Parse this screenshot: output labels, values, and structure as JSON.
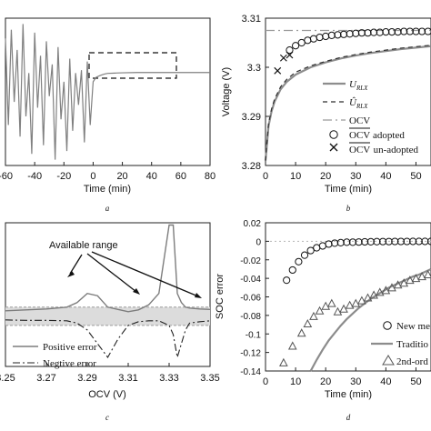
{
  "chart_data": [
    {
      "panel": "a",
      "type": "line",
      "xlabel": "Time (min)",
      "xlim": [
        -60,
        80
      ],
      "x_ticks": [
        "-60",
        "-40",
        "-20",
        "0",
        "20",
        "40",
        "60",
        "80"
      ],
      "caption": "a",
      "series": [
        {
          "style": "solid-gray",
          "x": [
            -60,
            -58,
            -56,
            -54,
            -52,
            -50,
            -48,
            -46,
            -44,
            -42,
            -40,
            -38,
            -36,
            -34,
            -32,
            -30,
            -28,
            -26,
            -24,
            -22,
            -20,
            -18,
            -16,
            -14,
            -12,
            -10,
            -8,
            -6,
            -4,
            -2,
            0,
            2,
            4,
            6,
            8,
            10,
            15,
            20,
            30,
            40,
            50,
            60,
            70,
            80
          ],
          "y": [
            3.42,
            3.12,
            3.45,
            3.2,
            3.38,
            3.08,
            3.47,
            3.15,
            3.3,
            3.02,
            3.44,
            3.18,
            3.36,
            3.05,
            3.41,
            3.22,
            3.33,
            3.0,
            3.39,
            3.14,
            3.27,
            3.03,
            3.35,
            3.1,
            3.3,
            3.19,
            3.31,
            3.06,
            3.34,
            3.12,
            3.27,
            3.285,
            3.29,
            3.294,
            3.297,
            3.299,
            3.3,
            3.301,
            3.302,
            3.302,
            3.302,
            3.302,
            3.302,
            3.302
          ]
        }
      ],
      "annotation": "dashed zoom box around relaxation period"
    },
    {
      "panel": "b",
      "type": "line",
      "xlabel": "Time (min)",
      "ylabel": "Voltage (V)",
      "xlim": [
        0,
        55
      ],
      "ylim": [
        3.28,
        3.31
      ],
      "x_ticks": [
        "0",
        "10",
        "20",
        "30",
        "40",
        "50"
      ],
      "y_ticks": [
        "3.28",
        "3.29",
        "3.3",
        "3.31"
      ],
      "caption": "b",
      "legend": [
        "U_RLX",
        "Û_RLX",
        "OCV",
        "OCV adopted",
        "OCV un-adopted"
      ],
      "legend_display": {
        "u_main": "U",
        "u_sub": "RLX",
        "uhat_main": "Û",
        "uhat_sub": "RLX",
        "ocv": "OCV",
        "ocv_adopted_main": "OCV",
        "ocv_adopted_tail": "adopted",
        "ocv_unadopted_main": "OCV",
        "ocv_unadopted_tail": "un-adopted"
      },
      "series": [
        {
          "name": "U_RLX",
          "x": [
            0,
            1,
            2,
            3,
            5,
            7,
            10,
            15,
            20,
            25,
            30,
            35,
            40,
            45,
            50,
            55
          ],
          "y": [
            3.281,
            3.288,
            3.291,
            3.293,
            3.2955,
            3.297,
            3.2985,
            3.3,
            3.301,
            3.3018,
            3.3024,
            3.3029,
            3.3033,
            3.3037,
            3.304,
            3.3043
          ]
        },
        {
          "name": "Û_RLX",
          "x": [
            0,
            1,
            2,
            3,
            5,
            7,
            10,
            15,
            20,
            25,
            30,
            35,
            40,
            45,
            50,
            55
          ],
          "y": [
            3.281,
            3.2885,
            3.2915,
            3.2935,
            3.296,
            3.2975,
            3.299,
            3.3003,
            3.3012,
            3.302,
            3.3026,
            3.3031,
            3.3035,
            3.3039,
            3.3042,
            3.3045
          ]
        },
        {
          "name": "OCV",
          "x": [
            0,
            55
          ],
          "y": [
            3.3075,
            3.3075
          ]
        },
        {
          "name": "OCV adopted",
          "x": [
            8,
            10,
            12,
            14,
            16,
            18,
            20,
            22,
            24,
            26,
            28,
            30,
            32,
            34,
            36,
            38,
            40,
            42,
            44,
            46,
            48,
            50,
            52,
            54
          ],
          "y": [
            3.3035,
            3.3044,
            3.305,
            3.3055,
            3.3058,
            3.3061,
            3.3063,
            3.3065,
            3.3066,
            3.3067,
            3.3068,
            3.3069,
            3.307,
            3.307,
            3.3071,
            3.3071,
            3.3072,
            3.3072,
            3.3072,
            3.3073,
            3.3073,
            3.3073,
            3.3073,
            3.3073
          ]
        },
        {
          "name": "OCV un-adopted",
          "x": [
            4,
            6,
            8
          ],
          "y": [
            3.2993,
            3.3019,
            3.3025
          ]
        }
      ]
    },
    {
      "panel": "c",
      "type": "line",
      "xlabel": "OCV (V)",
      "xlim": [
        3.25,
        3.35
      ],
      "x_ticks": [
        "3.25",
        "3.27",
        "3.29",
        "3.31",
        "3.33",
        "3.35"
      ],
      "caption": "c",
      "annotation": "Available range",
      "legend": [
        "Positive error",
        "Negtive error"
      ],
      "series": [
        {
          "name": "Positive error",
          "x": [
            3.25,
            3.26,
            3.27,
            3.28,
            3.285,
            3.29,
            3.295,
            3.3,
            3.305,
            3.31,
            3.315,
            3.32,
            3.325,
            3.33,
            3.332,
            3.334,
            3.336,
            3.338,
            3.34,
            3.345,
            3.35
          ],
          "y": [
            0.012,
            0.014,
            0.016,
            0.02,
            0.03,
            0.05,
            0.045,
            0.02,
            0.015,
            0.01,
            0.014,
            0.025,
            0.05,
            0.2,
            0.2,
            0.05,
            0.03,
            0.02,
            0.018,
            0.016,
            0.015
          ]
        },
        {
          "name": "Negtive error",
          "x": [
            3.25,
            3.26,
            3.27,
            3.28,
            3.285,
            3.29,
            3.295,
            3.3,
            3.305,
            3.31,
            3.315,
            3.32,
            3.325,
            3.33,
            3.332,
            3.334,
            3.336,
            3.338,
            3.34,
            3.345,
            3.35
          ],
          "y": [
            -0.008,
            -0.009,
            -0.009,
            -0.01,
            -0.015,
            -0.03,
            -0.06,
            -0.09,
            -0.05,
            -0.02,
            -0.012,
            -0.01,
            -0.01,
            -0.02,
            -0.04,
            -0.09,
            -0.06,
            -0.03,
            -0.015,
            -0.012,
            -0.01
          ]
        }
      ],
      "shaded_band": {
        "x": [
          3.25,
          3.35
        ],
        "y": [
          -0.02,
          0.02
        ]
      }
    },
    {
      "panel": "d",
      "type": "line",
      "xlabel": "Time (min)",
      "ylabel": "SOC error",
      "xlim": [
        0,
        55
      ],
      "ylim": [
        -0.14,
        0.02
      ],
      "x_ticks": [
        "0",
        "10",
        "20",
        "30",
        "40",
        "50"
      ],
      "y_ticks": [
        "0.02",
        "0",
        "-0.02",
        "-0.04",
        "-0.06",
        "-0.08",
        "-0.1",
        "-0.12",
        "-0.14"
      ],
      "caption": "d",
      "legend": [
        "New me",
        "Traditio",
        "2nd-ord"
      ],
      "series": [
        {
          "name": "New me",
          "x": [
            7,
            9,
            11,
            13,
            15,
            17,
            19,
            21,
            23,
            25,
            27,
            29,
            31,
            33,
            35,
            37,
            39,
            41,
            43,
            45,
            47,
            49,
            51,
            53,
            55
          ],
          "y": [
            -0.042,
            -0.031,
            -0.022,
            -0.015,
            -0.01,
            -0.007,
            -0.005,
            -0.003,
            -0.002,
            -0.0015,
            -0.001,
            -0.001,
            -0.0008,
            -0.0006,
            -0.0005,
            -0.0004,
            -0.0003,
            -0.0003,
            -0.0002,
            -0.0002,
            -0.0002,
            -0.0001,
            -0.0001,
            -0.0001,
            -0.0001
          ]
        },
        {
          "name": "Traditio",
          "x": [
            15,
            17,
            19,
            21,
            23,
            25,
            27,
            29,
            31,
            33,
            35,
            37,
            39,
            41,
            43,
            45,
            47,
            49,
            51,
            53,
            55
          ],
          "y": [
            -0.14,
            -0.128,
            -0.117,
            -0.107,
            -0.099,
            -0.091,
            -0.084,
            -0.078,
            -0.072,
            -0.067,
            -0.062,
            -0.058,
            -0.054,
            -0.05,
            -0.047,
            -0.044,
            -0.041,
            -0.038,
            -0.036,
            -0.033,
            -0.03
          ]
        },
        {
          "name": "2nd-ord",
          "x": [
            6,
            9,
            12,
            14,
            16,
            18,
            20,
            22,
            24,
            26,
            28,
            30,
            32,
            34,
            36,
            38,
            40,
            42,
            44,
            46,
            48,
            50,
            52,
            54
          ],
          "y": [
            -0.131,
            -0.113,
            -0.099,
            -0.089,
            -0.081,
            -0.075,
            -0.07,
            -0.067,
            -0.076,
            -0.073,
            -0.069,
            -0.067,
            -0.064,
            -0.061,
            -0.058,
            -0.055,
            -0.053,
            -0.05,
            -0.047,
            -0.045,
            -0.042,
            -0.04,
            -0.038,
            -0.036
          ]
        }
      ],
      "reference_line": 0
    }
  ]
}
